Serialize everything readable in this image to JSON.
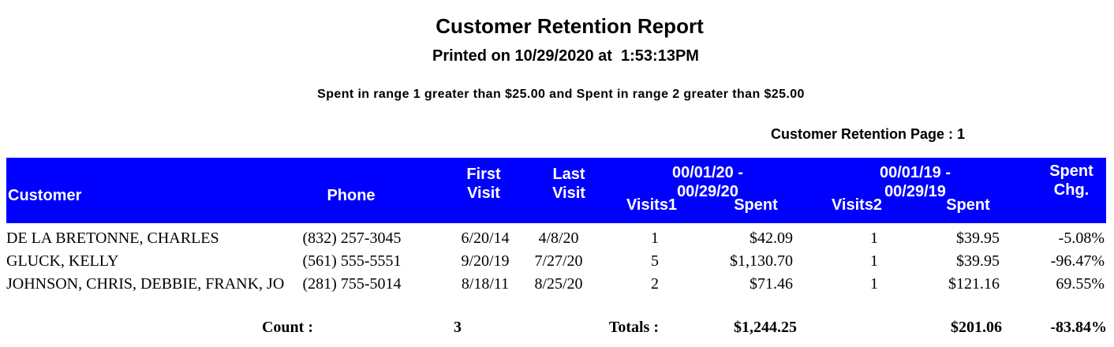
{
  "report": {
    "title": "Customer Retention Report",
    "printed_line": "Printed on 10/29/2020 at  1:53:13PM",
    "filter_line": "Spent in range 1 greater than $25.00 and Spent in range 2 greater than $25.00",
    "page_line": "Customer Retention Page : 1"
  },
  "colors": {
    "header_background": "#0000FE",
    "header_text": "#FFFFFF",
    "body_text": "#000000"
  },
  "table": {
    "header": {
      "customer": "Customer",
      "phone": "Phone",
      "first_visit_line1": "First",
      "first_visit_line2": "Visit",
      "last_visit_line1": "Last",
      "last_visit_line2": "Visit",
      "range1_label": "00/01/20 - 00/29/20",
      "visits1": "Visits1",
      "spent1": "Spent",
      "range2_label": "00/01/19 - 00/29/19",
      "visits2": "Visits2",
      "spent2": "Spent",
      "spent_chg_line1": "Spent",
      "spent_chg_line2": "Chg."
    },
    "rows": [
      {
        "customer": "DE LA BRETONNE, CHARLES",
        "phone": "(832) 257-3045",
        "first_visit": "6/20/14",
        "last_visit": "4/8/20",
        "visits1": "1",
        "spent1": "$42.09",
        "visits2": "1",
        "spent2": "$39.95",
        "spent_chg": "-5.08%"
      },
      {
        "customer": "GLUCK, KELLY",
        "phone": "(561) 555-5551",
        "first_visit": "9/20/19",
        "last_visit": "7/27/20",
        "visits1": "5",
        "spent1": "$1,130.70",
        "visits2": "1",
        "spent2": "$39.95",
        "spent_chg": "-96.47%"
      },
      {
        "customer": "JOHNSON, CHRIS, DEBBIE, FRANK, JO",
        "phone": "(281) 755-5014",
        "first_visit": "8/18/11",
        "last_visit": "8/25/20",
        "visits1": "2",
        "spent1": "$71.46",
        "visits2": "1",
        "spent2": "$121.16",
        "spent_chg": "69.55%"
      }
    ],
    "footer": {
      "count_label": "Count :",
      "count_value": "3",
      "totals_label": "Totals :",
      "spent1_total": "$1,244.25",
      "spent2_total": "$201.06",
      "spent_chg_total": "-83.84%"
    }
  }
}
